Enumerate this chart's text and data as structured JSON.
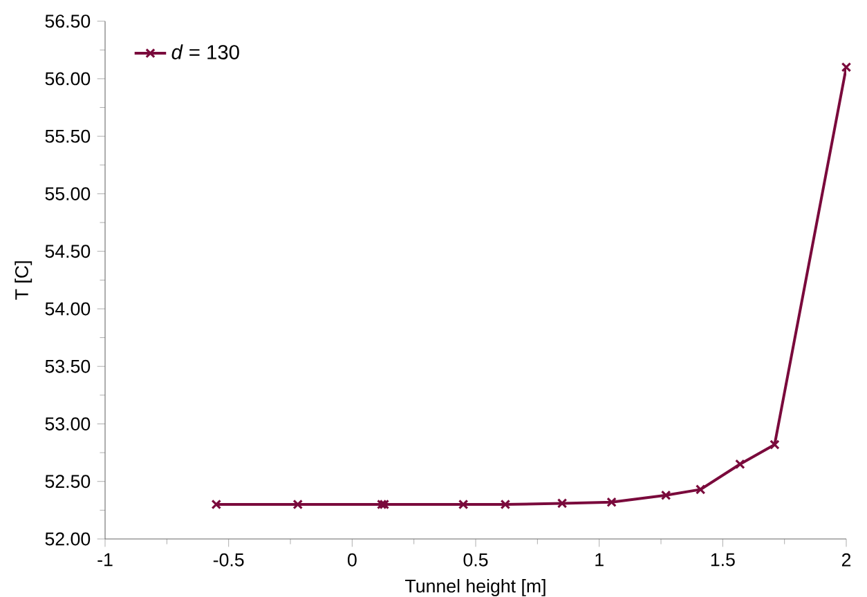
{
  "chart_data": {
    "type": "line",
    "xlabel": "Tunnel height [m]",
    "ylabel": "T [C]",
    "xlim": [
      -1,
      2
    ],
    "xticks": [
      -1,
      -0.5,
      0,
      0.5,
      1,
      1.5,
      2
    ],
    "ylim": [
      52,
      56.5
    ],
    "yticks": [
      {
        "value": 52,
        "label": "52.00"
      },
      {
        "value": 52.5,
        "label": "52.50"
      },
      {
        "value": 53,
        "label": "53.00"
      },
      {
        "value": 53.5,
        "label": "53.50"
      },
      {
        "value": 54,
        "label": "54.00"
      },
      {
        "value": 54.5,
        "label": "54.50"
      },
      {
        "value": 55,
        "label": "55.00"
      },
      {
        "value": 55.5,
        "label": "55.50"
      },
      {
        "value": 56,
        "label": "56.00"
      },
      {
        "value": 56.5,
        "label": "56.50"
      }
    ],
    "series": [
      {
        "name": "*d* = 130",
        "color": "#7a0a3c",
        "x": [
          -0.55,
          -0.22,
          0.12,
          0.13,
          0.45,
          0.62,
          0.85,
          1.05,
          1.27,
          1.41,
          1.57,
          1.71,
          2.0
        ],
        "values": [
          52.3,
          52.3,
          52.3,
          52.3,
          52.3,
          52.3,
          52.31,
          52.32,
          52.38,
          52.43,
          52.65,
          52.82,
          56.1
        ]
      }
    ],
    "marker": "cross",
    "line_style": "solid",
    "grid": false,
    "legend": "top left"
  }
}
